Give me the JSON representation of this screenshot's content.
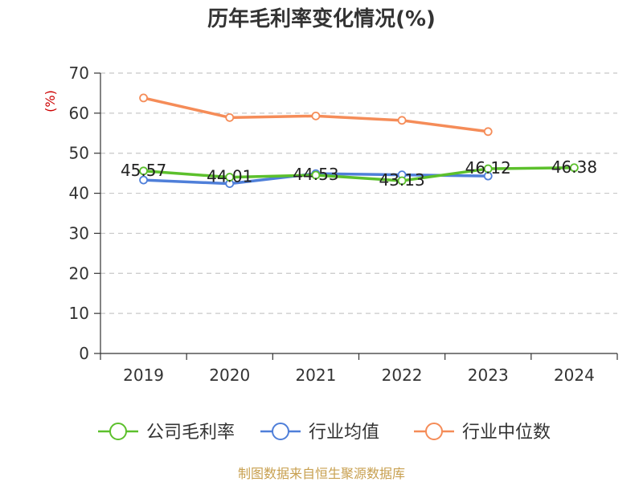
{
  "chart_data": {
    "type": "line",
    "title": "历年毛利率变化情况(%)",
    "ylabel": "(%)",
    "xlabel": "",
    "categories": [
      "2019",
      "2020",
      "2021",
      "2022",
      "2023",
      "2024"
    ],
    "ylim": [
      0,
      70
    ],
    "yticks": [
      0,
      10,
      20,
      30,
      40,
      50,
      60,
      70
    ],
    "grid": "horizontal-dashed",
    "legend": "bottom",
    "series": [
      {
        "name": "公司毛利率",
        "color": "#5cc02c",
        "values": [
          45.57,
          44.01,
          44.53,
          43.13,
          46.12,
          46.38
        ],
        "labels": [
          "45.57",
          "44.01",
          "44.53",
          "43.13",
          "46.12",
          "46.38"
        ]
      },
      {
        "name": "行业均值",
        "color": "#4f7fd9",
        "values": [
          43.3,
          42.4,
          44.9,
          44.6,
          44.3,
          null
        ],
        "labels": []
      },
      {
        "name": "行业中位数",
        "color": "#f58c58",
        "values": [
          63.8,
          58.9,
          59.3,
          58.2,
          55.4,
          null
        ],
        "labels": []
      }
    ]
  },
  "source_text": "制图数据来自恒生聚源数据库"
}
